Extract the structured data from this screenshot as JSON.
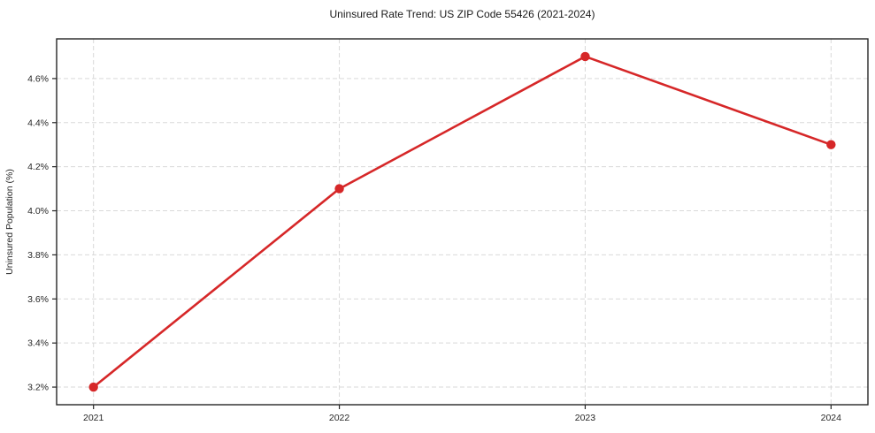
{
  "chart_data": {
    "type": "line",
    "title": "Uninsured Rate Trend: US ZIP Code 55426 (2021-2024)",
    "xlabel": "",
    "ylabel": "Uninsured Population (%)",
    "x": [
      2021,
      2022,
      2023,
      2024
    ],
    "y": [
      3.2,
      4.1,
      4.7,
      4.3
    ],
    "xtick_labels": [
      "2021",
      "2022",
      "2023",
      "2024"
    ],
    "yticks": [
      3.2,
      3.4,
      3.6,
      3.8,
      4.0,
      4.2,
      4.4,
      4.6
    ],
    "ytick_labels": [
      "3.2%",
      "3.4%",
      "3.6%",
      "3.8%",
      "4.0%",
      "4.2%",
      "4.4%",
      "4.6%"
    ],
    "xlim": [
      2020.85,
      2024.15
    ],
    "ylim": [
      3.12,
      4.78
    ],
    "grid": "dashed",
    "legend": "none",
    "line_color": "#d62728",
    "marker": "circle",
    "grid_color": "#d9d9d9",
    "axis_color": "#262626",
    "background": "#ffffff"
  }
}
